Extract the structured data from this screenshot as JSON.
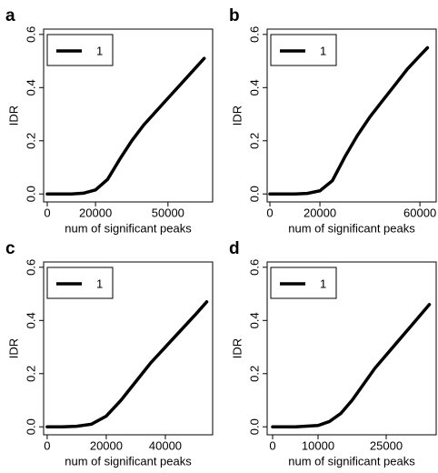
{
  "chart_data": [
    {
      "type": "line",
      "panel": "a",
      "xlabel": "num of significant peaks",
      "ylabel": "IDR",
      "x": [
        0,
        10000,
        15000,
        20000,
        25000,
        30000,
        35000,
        40000,
        45000,
        50000,
        55000,
        60000,
        65000
      ],
      "series": [
        {
          "name": "1",
          "color": "#000000",
          "values": [
            0,
            0,
            0.003,
            0.015,
            0.055,
            0.13,
            0.2,
            0.26,
            0.31,
            0.36,
            0.41,
            0.46,
            0.51
          ]
        }
      ],
      "xlim": [
        -1500,
        68500
      ],
      "ylim": [
        -0.03,
        0.62
      ],
      "xticks": [
        0,
        20000,
        50000
      ],
      "yticks": [
        {
          "value": 0,
          "label": "0.0"
        },
        0.2,
        0.4,
        0.6
      ],
      "legend": "top-left"
    },
    {
      "type": "line",
      "panel": "b",
      "xlabel": "num of significant peaks",
      "ylabel": "IDR",
      "x": [
        0,
        10000,
        15000,
        20000,
        25000,
        30000,
        35000,
        40000,
        45000,
        50000,
        55000,
        60000,
        63000
      ],
      "series": [
        {
          "name": "1",
          "color": "#000000",
          "values": [
            0,
            0,
            0.002,
            0.012,
            0.05,
            0.14,
            0.22,
            0.29,
            0.35,
            0.41,
            0.47,
            0.52,
            0.55
          ]
        }
      ],
      "xlim": [
        -1100,
        66500
      ],
      "ylim": [
        -0.03,
        0.62
      ],
      "xticks": [
        0,
        20000,
        60000
      ],
      "yticks": [
        {
          "value": 0,
          "label": "0.0"
        },
        0.2,
        0.4,
        0.6
      ],
      "legend": "top-left"
    },
    {
      "type": "line",
      "panel": "c",
      "xlabel": "num of significant peaks",
      "ylabel": "IDR",
      "x": [
        0,
        5000,
        10000,
        15000,
        20000,
        25000,
        30000,
        35000,
        40000,
        45000,
        50000,
        54000
      ],
      "series": [
        {
          "name": "1",
          "color": "#000000",
          "values": [
            0,
            0,
            0.002,
            0.01,
            0.04,
            0.1,
            0.17,
            0.24,
            0.3,
            0.36,
            0.42,
            0.47
          ]
        }
      ],
      "xlim": [
        -1200,
        56000
      ],
      "ylim": [
        -0.03,
        0.62
      ],
      "xticks": [
        0,
        20000,
        40000
      ],
      "yticks": [
        {
          "value": 0,
          "label": "0.0"
        },
        0.2,
        0.4,
        0.6
      ],
      "legend": "top-left"
    },
    {
      "type": "line",
      "panel": "d",
      "xlabel": "num of significant peaks",
      "ylabel": "IDR",
      "x": [
        0,
        5000,
        10000,
        12500,
        15000,
        17500,
        20000,
        22500,
        25000,
        27500,
        30000,
        32500,
        34500
      ],
      "series": [
        {
          "name": "1",
          "color": "#000000",
          "values": [
            0,
            0,
            0.005,
            0.02,
            0.05,
            0.1,
            0.16,
            0.22,
            0.27,
            0.32,
            0.37,
            0.42,
            0.46
          ]
        }
      ],
      "xlim": [
        -1200,
        36000
      ],
      "ylim": [
        -0.03,
        0.62
      ],
      "xticks": [
        0,
        10000,
        25000
      ],
      "yticks": [
        {
          "value": 0,
          "label": "0.0"
        },
        0.2,
        0.4,
        0.6
      ],
      "legend": "top-left"
    }
  ]
}
